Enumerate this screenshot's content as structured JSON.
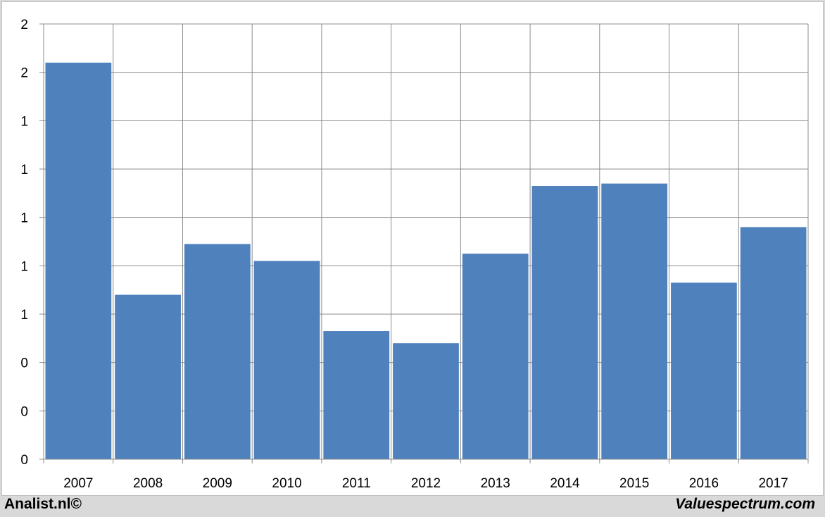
{
  "chart_data": {
    "type": "bar",
    "categories": [
      "2007",
      "2008",
      "2009",
      "2010",
      "2011",
      "2012",
      "2013",
      "2014",
      "2015",
      "2016",
      "2017"
    ],
    "values": [
      1.64,
      0.68,
      0.89,
      0.82,
      0.53,
      0.48,
      0.85,
      1.13,
      1.14,
      0.73,
      0.96
    ],
    "ylim": [
      0,
      1.8
    ],
    "yticks": [
      0,
      0.2,
      0.4,
      0.6,
      0.8,
      1.0,
      1.2,
      1.4,
      1.6,
      1.8
    ],
    "ytick_labels": [
      "0",
      "0",
      "0",
      "1",
      "1",
      "1",
      "1",
      "1",
      "2",
      "2"
    ],
    "grid": true,
    "bar_color": "#4f81bd",
    "title": "",
    "xlabel": "",
    "ylabel": ""
  },
  "footer": {
    "left": "Analist.nl©",
    "right": "Valuespectrum.com"
  }
}
